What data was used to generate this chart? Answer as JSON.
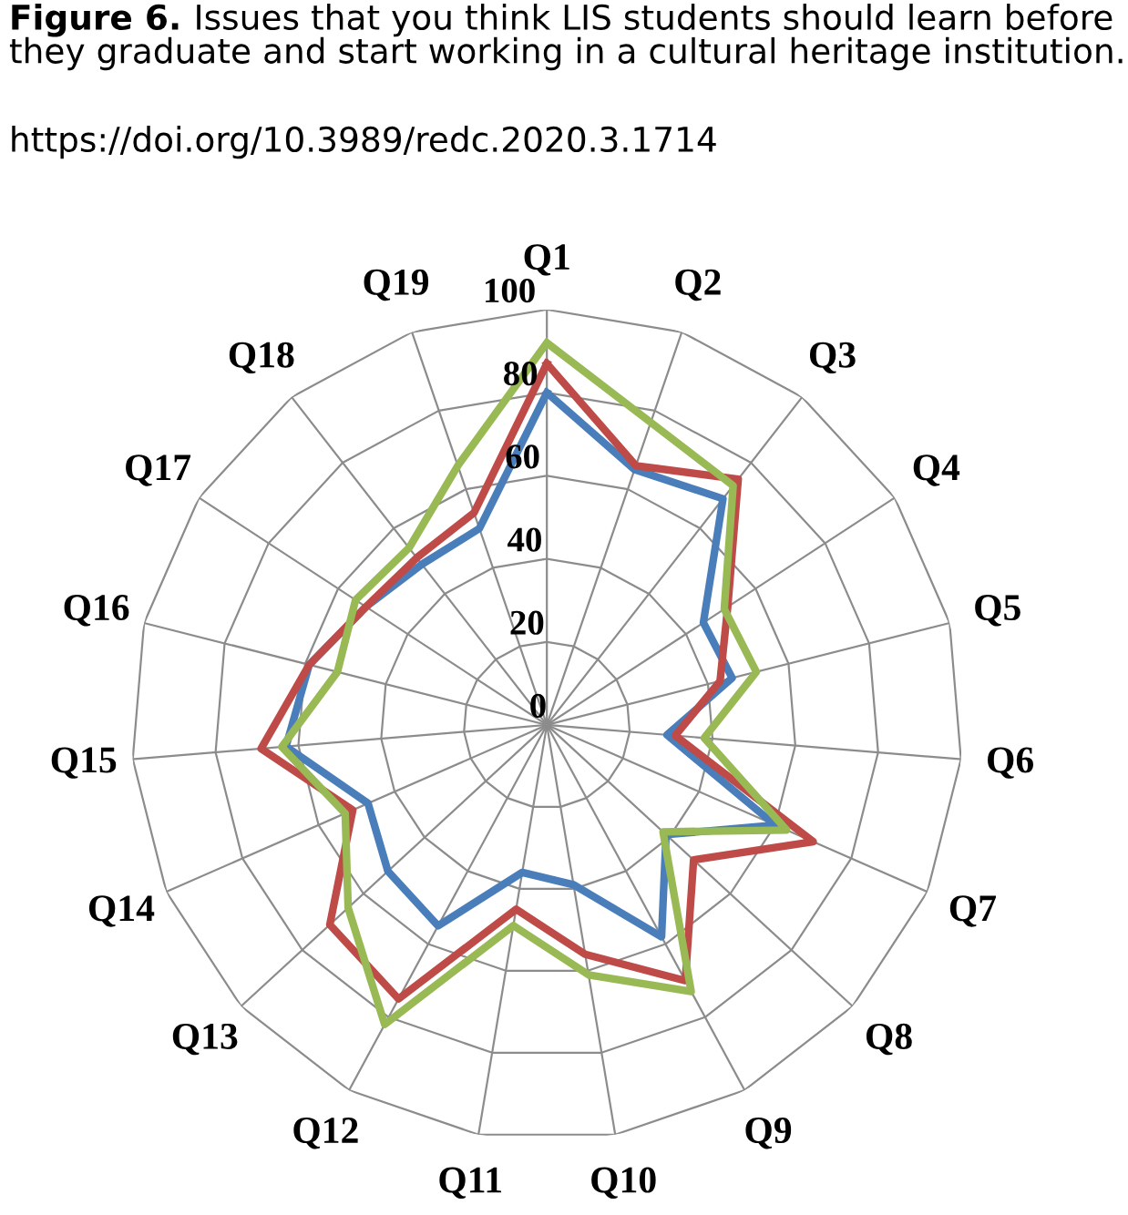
{
  "chart_data": {
    "type": "radar",
    "title": "Figure 6.",
    "subtitle": "Issues that you think LIS students should learn before they graduate and start working in a cultural heritage institution.",
    "annotations": [
      "https://doi.org/10.3989/redc.2020.3.1714"
    ],
    "categories": [
      "Q1",
      "Q2",
      "Q3",
      "Q4",
      "Q5",
      "Q6",
      "Q7",
      "Q8",
      "Q9",
      "Q10",
      "Q11",
      "Q12",
      "Q13",
      "Q14",
      "Q15",
      "Q16",
      "Q17",
      "Q18",
      "Q19"
    ],
    "ylim": [
      0,
      100
    ],
    "yticks": [
      0,
      20,
      40,
      60,
      80,
      100
    ],
    "grid": true,
    "marker": "none",
    "line_style": "solid",
    "series": [
      {
        "color": "#4a7ebb",
        "values": [
          80,
          65,
          69,
          45,
          46,
          29,
          60,
          39,
          58,
          39,
          36,
          55,
          52,
          47,
          63,
          59,
          52,
          49,
          50
        ]
      },
      {
        "color": "#be4b48",
        "values": [
          87,
          66,
          75,
          52,
          43,
          31,
          70,
          48,
          70,
          56,
          45,
          75,
          71,
          51,
          69,
          59,
          52,
          51,
          54
        ]
      },
      {
        "color": "#98b954",
        "values": [
          92,
          77,
          73,
          51,
          52,
          38,
          63,
          38,
          73,
          61,
          49,
          82,
          65,
          53,
          64,
          52,
          55,
          54,
          66
        ]
      }
    ]
  }
}
